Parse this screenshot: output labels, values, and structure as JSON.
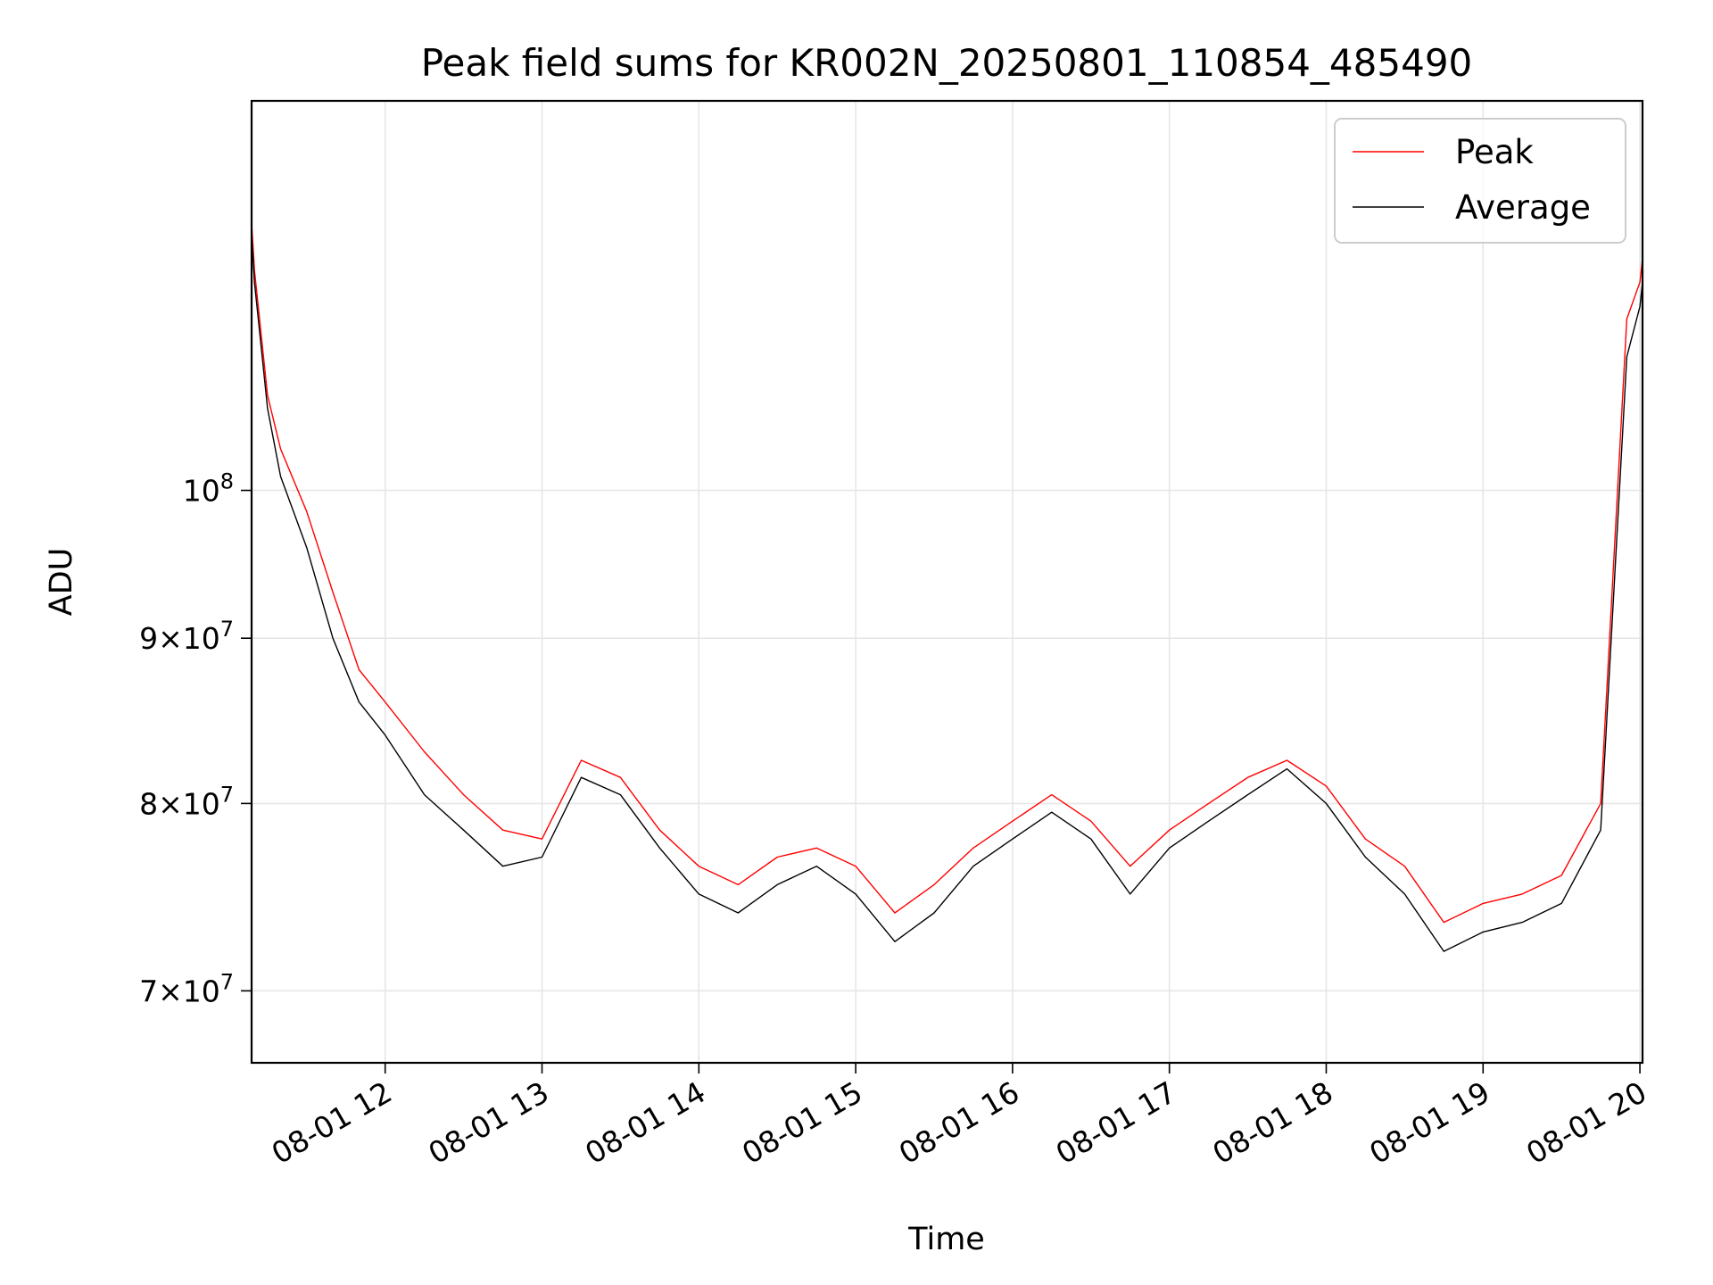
{
  "chart_data": {
    "type": "line",
    "title": "Peak field sums for KR002N_20250801_110854_485490",
    "xlabel": "Time",
    "ylabel": "ADU",
    "x_axis": {
      "scale": "time",
      "range": [
        "2025-08-01T11:08:54",
        "2025-08-01T20:01:00"
      ],
      "ticks": [
        {
          "value": "2025-08-01T12:00:00",
          "label": "08-01 12"
        },
        {
          "value": "2025-08-01T13:00:00",
          "label": "08-01 13"
        },
        {
          "value": "2025-08-01T14:00:00",
          "label": "08-01 14"
        },
        {
          "value": "2025-08-01T15:00:00",
          "label": "08-01 15"
        },
        {
          "value": "2025-08-01T16:00:00",
          "label": "08-01 16"
        },
        {
          "value": "2025-08-01T17:00:00",
          "label": "08-01 17"
        },
        {
          "value": "2025-08-01T18:00:00",
          "label": "08-01 18"
        },
        {
          "value": "2025-08-01T19:00:00",
          "label": "08-01 19"
        },
        {
          "value": "2025-08-01T20:00:00",
          "label": "08-01 20"
        }
      ]
    },
    "y_axis": {
      "scale": "log",
      "range": [
        66500000,
        132000000
      ],
      "ticks": [
        {
          "value": 70000000,
          "mantissa": "7",
          "exponent": "7"
        },
        {
          "value": 80000000,
          "mantissa": "8",
          "exponent": "7"
        },
        {
          "value": 90000000,
          "mantissa": "9",
          "exponent": "7"
        },
        {
          "value": 100000000,
          "mantissa": "",
          "exponent": "8"
        }
      ]
    },
    "grid": true,
    "legend": {
      "position": "top-right"
    },
    "series": [
      {
        "name": "Peak",
        "color": "#ff0000",
        "x": [
          "2025-08-01T11:08:54",
          "2025-08-01T11:10:00",
          "2025-08-01T11:15:00",
          "2025-08-01T11:20:00",
          "2025-08-01T11:30:00",
          "2025-08-01T11:40:00",
          "2025-08-01T11:50:00",
          "2025-08-01T12:00:00",
          "2025-08-01T12:15:00",
          "2025-08-01T12:30:00",
          "2025-08-01T12:45:00",
          "2025-08-01T13:00:00",
          "2025-08-01T13:15:00",
          "2025-08-01T13:30:00",
          "2025-08-01T13:45:00",
          "2025-08-01T14:00:00",
          "2025-08-01T14:15:00",
          "2025-08-01T14:30:00",
          "2025-08-01T14:45:00",
          "2025-08-01T15:00:00",
          "2025-08-01T15:15:00",
          "2025-08-01T15:30:00",
          "2025-08-01T15:45:00",
          "2025-08-01T16:00:00",
          "2025-08-01T16:15:00",
          "2025-08-01T16:30:00",
          "2025-08-01T16:45:00",
          "2025-08-01T17:00:00",
          "2025-08-01T17:15:00",
          "2025-08-01T17:30:00",
          "2025-08-01T17:45:00",
          "2025-08-01T18:00:00",
          "2025-08-01T18:15:00",
          "2025-08-01T18:30:00",
          "2025-08-01T18:45:00",
          "2025-08-01T19:00:00",
          "2025-08-01T19:15:00",
          "2025-08-01T19:30:00",
          "2025-08-01T19:45:00",
          "2025-08-01T19:55:00",
          "2025-08-01T20:00:00",
          "2025-08-01T20:01:00"
        ],
        "y": [
          121000000,
          117000000,
          107000000,
          103000000,
          98500000,
          93000000,
          88000000,
          86000000,
          83000000,
          80500000,
          78500000,
          78000000,
          82500000,
          81500000,
          78500000,
          76500000,
          75500000,
          77000000,
          77500000,
          76500000,
          74000000,
          75500000,
          77500000,
          79000000,
          80500000,
          79000000,
          76500000,
          78500000,
          80000000,
          81500000,
          82500000,
          81000000,
          78000000,
          76500000,
          73500000,
          74500000,
          75000000,
          76000000,
          80000000,
          113000000,
          116000000,
          118000000
        ]
      },
      {
        "name": "Average",
        "color": "#000000",
        "x": [
          "2025-08-01T11:08:54",
          "2025-08-01T11:10:00",
          "2025-08-01T11:15:00",
          "2025-08-01T11:20:00",
          "2025-08-01T11:30:00",
          "2025-08-01T11:40:00",
          "2025-08-01T11:50:00",
          "2025-08-01T12:00:00",
          "2025-08-01T12:15:00",
          "2025-08-01T12:30:00",
          "2025-08-01T12:45:00",
          "2025-08-01T13:00:00",
          "2025-08-01T13:15:00",
          "2025-08-01T13:30:00",
          "2025-08-01T13:45:00",
          "2025-08-01T14:00:00",
          "2025-08-01T14:15:00",
          "2025-08-01T14:30:00",
          "2025-08-01T14:45:00",
          "2025-08-01T15:00:00",
          "2025-08-01T15:15:00",
          "2025-08-01T15:30:00",
          "2025-08-01T15:45:00",
          "2025-08-01T16:00:00",
          "2025-08-01T16:15:00",
          "2025-08-01T16:30:00",
          "2025-08-01T16:45:00",
          "2025-08-01T17:00:00",
          "2025-08-01T17:15:00",
          "2025-08-01T17:30:00",
          "2025-08-01T17:45:00",
          "2025-08-01T18:00:00",
          "2025-08-01T18:15:00",
          "2025-08-01T18:30:00",
          "2025-08-01T18:45:00",
          "2025-08-01T19:00:00",
          "2025-08-01T19:15:00",
          "2025-08-01T19:30:00",
          "2025-08-01T19:45:00",
          "2025-08-01T19:55:00",
          "2025-08-01T20:00:00",
          "2025-08-01T20:01:00"
        ],
        "y": [
          120000000,
          116000000,
          106000000,
          101000000,
          96000000,
          90000000,
          86000000,
          84000000,
          80500000,
          78500000,
          76500000,
          77000000,
          81500000,
          80500000,
          77500000,
          75000000,
          74000000,
          75500000,
          76500000,
          75000000,
          72500000,
          74000000,
          76500000,
          78000000,
          79500000,
          78000000,
          75000000,
          77500000,
          79000000,
          80500000,
          82000000,
          80000000,
          77000000,
          75000000,
          72000000,
          73000000,
          73500000,
          74500000,
          78500000,
          110000000,
          114000000,
          116000000
        ]
      }
    ]
  }
}
